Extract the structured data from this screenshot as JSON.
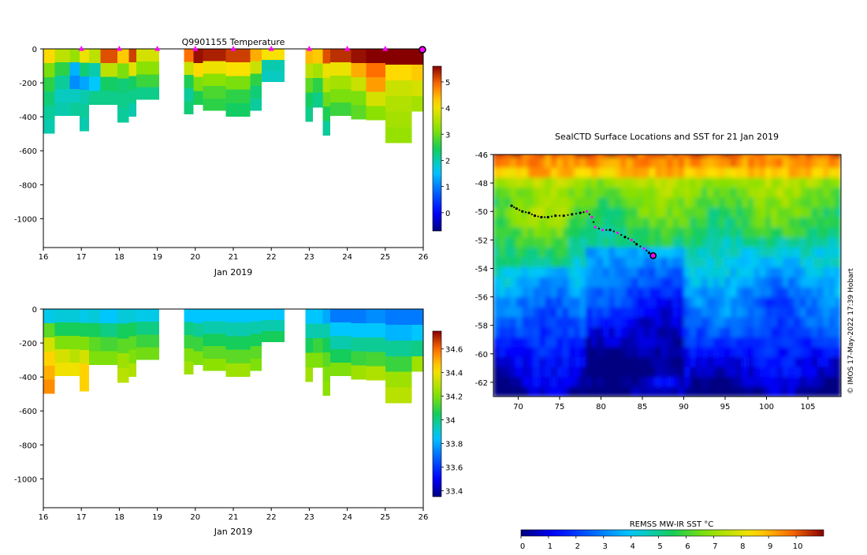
{
  "chart_data": [
    {
      "type": "heatmap",
      "title": "Q9901155  Temperature",
      "xlabel": "Jan 2019",
      "ylabel": "",
      "xlim": [
        16,
        26
      ],
      "ylim": [
        -1170,
        0
      ],
      "xticks": [
        16,
        17,
        18,
        19,
        20,
        21,
        22,
        23,
        24,
        25,
        26
      ],
      "yticks": [
        0,
        -200,
        -400,
        -600,
        -800,
        -1000
      ],
      "colorbar": {
        "ticks": [
          0,
          1,
          2,
          3,
          4,
          5
        ],
        "range": [
          -0.7,
          5.6
        ]
      },
      "profile_markers": [
        17,
        18,
        19,
        20,
        21,
        22,
        23,
        24,
        25
      ],
      "last_position_marker": 26,
      "profiles": [
        {
          "t0": 16.0,
          "t1": 16.3,
          "depth": 500,
          "values": [
            4.2,
            3.1,
            2.6,
            2.3,
            2.1,
            2.0
          ]
        },
        {
          "t0": 16.3,
          "t1": 16.7,
          "depth": 395,
          "values": [
            3.6,
            2.6,
            2.1,
            1.9,
            2.0
          ]
        },
        {
          "t0": 16.7,
          "t1": 16.95,
          "depth": 395,
          "values": [
            3.3,
            1.4,
            1.1,
            1.9,
            2.1
          ]
        },
        {
          "t0": 16.95,
          "t1": 17.2,
          "depth": 485,
          "values": [
            4.0,
            2.3,
            1.3,
            2.0,
            2.1,
            2.0
          ]
        },
        {
          "t0": 17.2,
          "t1": 17.5,
          "depth": 330,
          "values": [
            3.6,
            2.0,
            1.6,
            2.2
          ]
        },
        {
          "t0": 17.5,
          "t1": 17.95,
          "depth": 330,
          "values": [
            5.1,
            3.6,
            2.4,
            2.2
          ]
        },
        {
          "t0": 17.95,
          "t1": 18.25,
          "depth": 435,
          "values": [
            4.3,
            3.1,
            2.3,
            2.2,
            2.1
          ]
        },
        {
          "t0": 18.25,
          "t1": 18.45,
          "depth": 400,
          "values": [
            5.2,
            3.9,
            2.4,
            2.2,
            2.0
          ]
        },
        {
          "t0": 18.45,
          "t1": 19.05,
          "depth": 300,
          "values": [
            3.8,
            3.2,
            2.7,
            2.2
          ]
        },
        {
          "t0": 19.7,
          "t1": 19.95,
          "depth": 385,
          "values": [
            4.9,
            3.7,
            2.5,
            2.1,
            2.3
          ]
        },
        {
          "t0": 19.95,
          "t1": 20.2,
          "depth": 330,
          "values": [
            5.5,
            4.2,
            3.1,
            2.5
          ]
        },
        {
          "t0": 20.2,
          "t1": 20.8,
          "depth": 365,
          "values": [
            5.4,
            4.0,
            3.2,
            2.8,
            2.6
          ]
        },
        {
          "t0": 20.8,
          "t1": 21.45,
          "depth": 400,
          "values": [
            5.2,
            4.1,
            3.1,
            2.6,
            2.4
          ]
        },
        {
          "t0": 21.45,
          "t1": 21.75,
          "depth": 365,
          "values": [
            4.5,
            3.7,
            2.6,
            2.3,
            2.1
          ]
        },
        {
          "t0": 21.75,
          "t1": 22.35,
          "depth": 195,
          "values": [
            4.1,
            2.0,
            1.9
          ]
        },
        {
          "t0": 22.9,
          "t1": 23.1,
          "depth": 430,
          "values": [
            4.4,
            3.6,
            2.9,
            2.4,
            2.2
          ]
        },
        {
          "t0": 23.1,
          "t1": 23.35,
          "depth": 345,
          "values": [
            4.3,
            3.4,
            2.6,
            2.2
          ]
        },
        {
          "t0": 23.35,
          "t1": 23.55,
          "depth": 510,
          "values": [
            5.1,
            4.0,
            3.5,
            3.0,
            2.5,
            2.1
          ]
        },
        {
          "t0": 23.55,
          "t1": 24.1,
          "depth": 395,
          "values": [
            5.3,
            4.0,
            3.4,
            3.1,
            2.7
          ]
        },
        {
          "t0": 24.1,
          "t1": 24.5,
          "depth": 415,
          "values": [
            5.5,
            4.5,
            3.7,
            3.1,
            2.9
          ]
        },
        {
          "t0": 24.5,
          "t1": 25.0,
          "depth": 420,
          "values": [
            5.6,
            4.9,
            4.6,
            3.8,
            3.2
          ]
        },
        {
          "t0": 25.0,
          "t1": 25.7,
          "depth": 555,
          "values": [
            5.6,
            4.2,
            3.7,
            3.5,
            3.4,
            3.3
          ]
        },
        {
          "t0": 25.7,
          "t1": 26.1,
          "depth": 370,
          "values": [
            5.6,
            4.3,
            3.8,
            3.4
          ]
        }
      ]
    },
    {
      "type": "heatmap",
      "title": "",
      "xlabel": "Jan 2019",
      "ylabel": "",
      "xlim": [
        16,
        26
      ],
      "ylim": [
        -1170,
        0
      ],
      "xticks": [
        16,
        17,
        18,
        19,
        20,
        21,
        22,
        23,
        24,
        25,
        26
      ],
      "yticks": [
        0,
        -200,
        -400,
        -600,
        -800,
        -1000
      ],
      "colorbar": {
        "ticks": [
          33.4,
          33.6,
          33.8,
          34,
          34.2,
          34.4,
          34.6
        ],
        "range": [
          33.35,
          34.75
        ]
      },
      "profiles": [
        {
          "t0": 16.0,
          "t1": 16.3,
          "depth": 500,
          "values": [
            33.88,
            34.15,
            34.35,
            34.45,
            34.5,
            34.55
          ]
        },
        {
          "t0": 16.3,
          "t1": 16.7,
          "depth": 395,
          "values": [
            33.9,
            34.05,
            34.2,
            34.35,
            34.4
          ]
        },
        {
          "t0": 16.7,
          "t1": 16.95,
          "depth": 395,
          "values": [
            33.9,
            34.05,
            34.2,
            34.3,
            34.4
          ]
        },
        {
          "t0": 16.95,
          "t1": 17.2,
          "depth": 485,
          "values": [
            33.88,
            34.05,
            34.2,
            34.35,
            34.45,
            34.45
          ]
        },
        {
          "t0": 17.2,
          "t1": 17.5,
          "depth": 330,
          "values": [
            33.9,
            34.05,
            34.15,
            34.2
          ]
        },
        {
          "t0": 17.5,
          "t1": 17.95,
          "depth": 330,
          "values": [
            33.85,
            34.0,
            34.12,
            34.2
          ]
        },
        {
          "t0": 17.95,
          "t1": 18.25,
          "depth": 435,
          "values": [
            33.9,
            34.05,
            34.15,
            34.25,
            34.3
          ]
        },
        {
          "t0": 18.25,
          "t1": 18.45,
          "depth": 400,
          "values": [
            33.9,
            34.05,
            34.15,
            34.2,
            34.28
          ]
        },
        {
          "t0": 18.45,
          "t1": 19.05,
          "depth": 300,
          "values": [
            33.88,
            34.0,
            34.1,
            34.18
          ]
        },
        {
          "t0": 19.7,
          "t1": 19.95,
          "depth": 385,
          "values": [
            33.85,
            34.0,
            34.1,
            34.2,
            34.25
          ]
        },
        {
          "t0": 19.95,
          "t1": 20.2,
          "depth": 330,
          "values": [
            33.85,
            33.98,
            34.1,
            34.2
          ]
        },
        {
          "t0": 20.2,
          "t1": 20.8,
          "depth": 365,
          "values": [
            33.85,
            33.95,
            34.05,
            34.15,
            34.22
          ]
        },
        {
          "t0": 20.8,
          "t1": 21.45,
          "depth": 400,
          "values": [
            33.85,
            33.95,
            34.05,
            34.15,
            34.25
          ]
        },
        {
          "t0": 21.45,
          "t1": 21.75,
          "depth": 365,
          "values": [
            33.85,
            33.95,
            34.05,
            34.15,
            34.2
          ]
        },
        {
          "t0": 21.75,
          "t1": 22.35,
          "depth": 195,
          "values": [
            33.85,
            33.95,
            34.05
          ]
        },
        {
          "t0": 22.9,
          "t1": 23.1,
          "depth": 430,
          "values": [
            33.85,
            33.95,
            34.05,
            34.2,
            34.25
          ]
        },
        {
          "t0": 23.1,
          "t1": 23.35,
          "depth": 345,
          "values": [
            33.85,
            33.95,
            34.1,
            34.2
          ]
        },
        {
          "t0": 23.35,
          "t1": 23.55,
          "depth": 510,
          "values": [
            33.8,
            33.95,
            34.05,
            34.15,
            34.2,
            34.22
          ]
        },
        {
          "t0": 23.55,
          "t1": 24.1,
          "depth": 395,
          "values": [
            33.72,
            33.85,
            33.95,
            34.05,
            34.2
          ]
        },
        {
          "t0": 24.1,
          "t1": 24.5,
          "depth": 415,
          "values": [
            33.72,
            33.85,
            33.98,
            34.1,
            34.25
          ]
        },
        {
          "t0": 24.5,
          "t1": 25.0,
          "depth": 420,
          "values": [
            33.75,
            33.85,
            33.98,
            34.12,
            34.28
          ]
        },
        {
          "t0": 25.0,
          "t1": 25.7,
          "depth": 555,
          "values": [
            33.72,
            33.82,
            33.98,
            34.1,
            34.25,
            34.3
          ]
        },
        {
          "t0": 25.7,
          "t1": 26.1,
          "depth": 370,
          "values": [
            33.72,
            33.85,
            34.0,
            34.25
          ]
        }
      ]
    },
    {
      "type": "heatmap",
      "title": "SealCTD Surface Locations and SST for 21 Jan 2019",
      "xlabel": "",
      "ylabel": "",
      "xlim": [
        67,
        109
      ],
      "ylim": [
        -63,
        -46
      ],
      "xticks": [
        70,
        75,
        80,
        85,
        90,
        95,
        100,
        105
      ],
      "yticks": [
        -46,
        -48,
        -50,
        -52,
        -54,
        -56,
        -58,
        -60,
        -62
      ],
      "colorbar": {
        "label": "REMSS MW-IR SST °C",
        "ticks": [
          0,
          1,
          2,
          3,
          4,
          5,
          6,
          7,
          8,
          9,
          10
        ],
        "range": [
          0,
          11
        ]
      },
      "credit": "© IMOS 17-May-2022 17:39 Hobart",
      "track": {
        "lon": [
          69.2,
          69.8,
          70.5,
          71.3,
          72.0,
          72.8,
          73.6,
          74.5,
          75.5,
          76.5,
          77.5,
          78.3,
          78.9,
          79.3,
          80.2,
          81.1,
          82.0,
          82.9,
          83.7,
          84.3,
          85.2,
          85.8,
          86.3
        ],
        "lat": [
          -49.6,
          -49.8,
          -50.0,
          -50.1,
          -50.3,
          -50.4,
          -50.4,
          -50.3,
          -50.3,
          -50.2,
          -50.1,
          -50.0,
          -50.4,
          -51.1,
          -51.3,
          -51.3,
          -51.5,
          -51.8,
          -52.0,
          -52.3,
          -52.6,
          -52.9,
          -53.1
        ],
        "highlighted": [
          11,
          12,
          13,
          14,
          16,
          18,
          20
        ]
      },
      "last_position": {
        "lon": 86.3,
        "lat": -53.1
      }
    }
  ]
}
